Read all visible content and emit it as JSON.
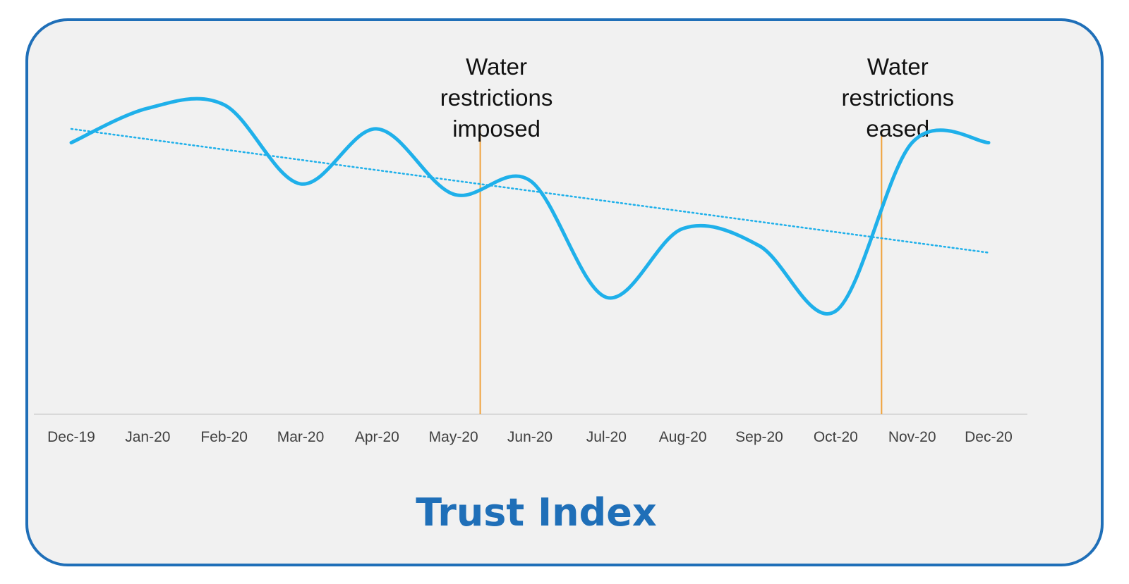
{
  "chart_data": {
    "type": "line",
    "title": "Trust Index",
    "categories": [
      "Dec-19",
      "Jan-20",
      "Feb-20",
      "Mar-20",
      "Apr-20",
      "May-20",
      "Jun-20",
      "Jul-20",
      "Aug-20",
      "Sep-20",
      "Oct-20",
      "Nov-20",
      "Dec-20"
    ],
    "series": [
      {
        "values": [
          79,
          89,
          90,
          67,
          83,
          64,
          68,
          34,
          54,
          49,
          30,
          79,
          79
        ],
        "color": "#1fb0ea"
      }
    ],
    "trendline": {
      "style": "dotted",
      "color": "#1fb0ea",
      "start": 83,
      "end": 47
    },
    "annotations": [
      {
        "lines": [
          "Water",
          "restrictions",
          "imposed"
        ],
        "position": 5.35,
        "color": "#f0a23c"
      },
      {
        "lines": [
          "Water",
          "restrictions",
          "eased"
        ],
        "position": 10.6,
        "color": "#f0a23c"
      }
    ],
    "ylim": [
      0,
      100
    ],
    "grid": false,
    "legend": "none"
  }
}
